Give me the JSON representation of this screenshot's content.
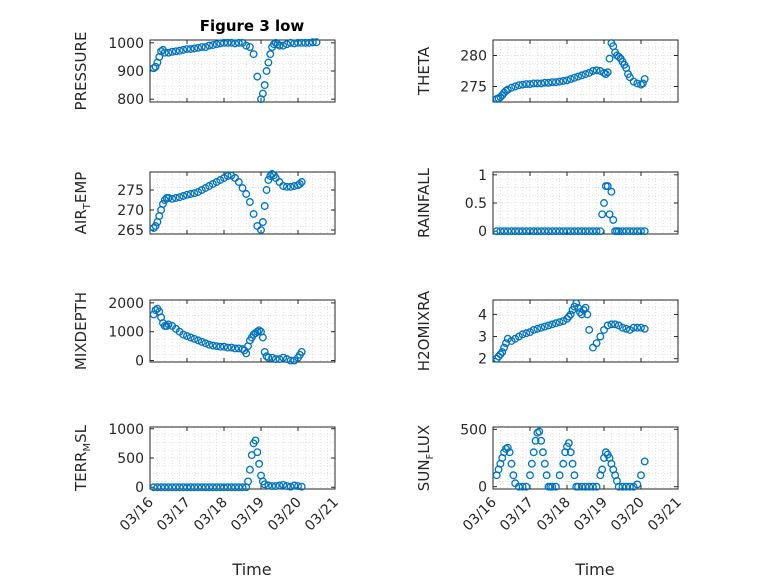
{
  "figure": {
    "title": "Figure 3 low",
    "marker_color": "#0072BD",
    "x_tick_labels": [
      "03/16",
      "03/17",
      "03/18",
      "03/19",
      "03/20",
      "03/21"
    ],
    "xlabel": "Time"
  },
  "chart_data": [
    {
      "type": "scatter",
      "ylabel": "PRESSURE",
      "xlim": [
        0,
        5
      ],
      "ylim": [
        790,
        1010
      ],
      "yticks": [
        800,
        900,
        1000
      ],
      "ytick_labels": [
        "800",
        "900",
        "1000"
      ],
      "grid": true,
      "x": [
        0.1,
        0.15,
        0.2,
        0.25,
        0.3,
        0.35,
        0.4,
        0.5,
        0.6,
        0.7,
        0.8,
        0.9,
        1.0,
        1.1,
        1.2,
        1.3,
        1.4,
        1.5,
        1.6,
        1.7,
        1.8,
        1.9,
        2.0,
        2.1,
        2.2,
        2.3,
        2.4,
        2.5,
        2.6,
        2.7,
        2.8,
        2.9,
        3.0,
        3.05,
        3.1,
        3.15,
        3.2,
        3.25,
        3.3,
        3.35,
        3.4,
        3.45,
        3.5,
        3.6,
        3.7,
        3.8,
        3.9,
        4.0,
        4.1,
        4.2,
        4.3,
        4.4,
        4.5
      ],
      "y": [
        910,
        915,
        930,
        950,
        970,
        975,
        965,
        965,
        968,
        970,
        972,
        975,
        978,
        978,
        980,
        982,
        985,
        985,
        990,
        992,
        995,
        998,
        1000,
        1000,
        1000,
        998,
        1000,
        1000,
        990,
        985,
        960,
        880,
        800,
        820,
        850,
        900,
        930,
        960,
        985,
        995,
        1000,
        995,
        990,
        990,
        995,
        1000,
        998,
        1000,
        1000,
        1000,
        1000,
        1002,
        1002
      ]
    },
    {
      "type": "scatter",
      "ylabel": "THETA",
      "xlim": [
        0,
        5
      ],
      "ylim": [
        272.5,
        282.5
      ],
      "yticks": [
        275,
        280
      ],
      "ytick_labels": [
        "275",
        "280"
      ],
      "grid": true,
      "x": [
        0.1,
        0.15,
        0.2,
        0.25,
        0.3,
        0.35,
        0.4,
        0.5,
        0.6,
        0.7,
        0.8,
        0.9,
        1.0,
        1.1,
        1.2,
        1.3,
        1.4,
        1.5,
        1.6,
        1.7,
        1.8,
        1.9,
        2.0,
        2.1,
        2.2,
        2.3,
        2.4,
        2.5,
        2.6,
        2.7,
        2.8,
        2.9,
        3.0,
        3.05,
        3.1,
        3.15,
        3.2,
        3.25,
        3.3,
        3.35,
        3.4,
        3.45,
        3.5,
        3.55,
        3.6,
        3.65,
        3.7,
        3.8,
        3.9,
        4.0,
        4.05,
        4.1
      ],
      "y": [
        273.0,
        273.1,
        273.3,
        273.6,
        274.0,
        274.3,
        274.5,
        274.8,
        275.0,
        275.2,
        275.3,
        275.4,
        275.4,
        275.5,
        275.5,
        275.5,
        275.6,
        275.6,
        275.7,
        275.7,
        275.8,
        275.9,
        276.0,
        276.2,
        276.4,
        276.6,
        276.8,
        277.0,
        277.2,
        277.5,
        277.6,
        277.5,
        277.2,
        277.0,
        277.3,
        279.5,
        282.0,
        281.5,
        280.5,
        280.0,
        279.8,
        279.5,
        279.0,
        278.5,
        278.0,
        277.0,
        276.5,
        275.8,
        275.5,
        275.3,
        275.5,
        276.2
      ]
    },
    {
      "type": "scatter",
      "ylabel": "AIR_TEMP",
      "xlim": [
        0,
        5
      ],
      "ylim": [
        264,
        279.5
      ],
      "yticks": [
        265,
        270,
        275
      ],
      "ytick_labels": [
        "265",
        "270",
        "275"
      ],
      "grid": true,
      "x": [
        0.1,
        0.15,
        0.2,
        0.25,
        0.3,
        0.35,
        0.4,
        0.45,
        0.5,
        0.6,
        0.7,
        0.8,
        0.9,
        1.0,
        1.1,
        1.2,
        1.3,
        1.4,
        1.5,
        1.6,
        1.7,
        1.8,
        1.9,
        2.0,
        2.1,
        2.2,
        2.3,
        2.4,
        2.5,
        2.6,
        2.7,
        2.8,
        2.9,
        3.0,
        3.05,
        3.1,
        3.15,
        3.2,
        3.25,
        3.3,
        3.35,
        3.4,
        3.5,
        3.6,
        3.7,
        3.8,
        3.9,
        4.0,
        4.05,
        4.1
      ],
      "y": [
        265.5,
        266.0,
        267.0,
        268.5,
        270.0,
        271.5,
        272.5,
        273.0,
        273.0,
        272.8,
        273.0,
        273.2,
        273.5,
        273.8,
        274.0,
        274.2,
        274.5,
        275.0,
        275.5,
        276.0,
        276.5,
        277.0,
        277.5,
        278.0,
        278.5,
        278.6,
        278.0,
        277.0,
        275.5,
        274.0,
        272.0,
        269.0,
        266.0,
        265.0,
        267.0,
        271.0,
        275.0,
        277.5,
        278.5,
        279.0,
        278.7,
        278.0,
        277.0,
        276.0,
        275.8,
        275.8,
        276.0,
        276.2,
        276.5,
        277.0
      ]
    },
    {
      "type": "scatter",
      "ylabel": "RAINFALL",
      "xlim": [
        0,
        5
      ],
      "ylim": [
        -0.05,
        1.05
      ],
      "yticks": [
        0,
        0.5,
        1
      ],
      "ytick_labels": [
        "0",
        "0.5",
        "1"
      ],
      "grid": true,
      "x": [
        0.1,
        0.2,
        0.3,
        0.4,
        0.5,
        0.6,
        0.7,
        0.8,
        0.9,
        1.0,
        1.1,
        1.2,
        1.3,
        1.4,
        1.5,
        1.6,
        1.7,
        1.8,
        1.9,
        2.0,
        2.1,
        2.2,
        2.3,
        2.4,
        2.5,
        2.6,
        2.7,
        2.8,
        2.9,
        2.95,
        3.0,
        3.05,
        3.1,
        3.15,
        3.2,
        3.25,
        3.3,
        3.35,
        3.4,
        3.5,
        3.6,
        3.7,
        3.8,
        3.9,
        4.0,
        4.1
      ],
      "y": [
        0,
        0,
        0,
        0,
        0,
        0,
        0,
        0,
        0,
        0,
        0,
        0,
        0,
        0,
        0,
        0,
        0,
        0,
        0,
        0,
        0,
        0,
        0,
        0,
        0,
        0,
        0,
        0,
        0,
        0.3,
        0.5,
        0.8,
        0.8,
        0.3,
        0.7,
        0.2,
        0,
        0,
        0,
        0,
        0,
        0,
        0,
        0,
        0,
        0
      ]
    },
    {
      "type": "scatter",
      "ylabel": "MIXDEPTH",
      "xlim": [
        0,
        5
      ],
      "ylim": [
        -50,
        2100
      ],
      "yticks": [
        0,
        1000,
        2000
      ],
      "ytick_labels": [
        "0",
        "1000",
        "2000"
      ],
      "grid": true,
      "x": [
        0.1,
        0.15,
        0.2,
        0.25,
        0.3,
        0.35,
        0.4,
        0.45,
        0.5,
        0.6,
        0.7,
        0.8,
        0.9,
        1.0,
        1.1,
        1.2,
        1.3,
        1.4,
        1.5,
        1.6,
        1.7,
        1.8,
        1.9,
        2.0,
        2.1,
        2.2,
        2.3,
        2.4,
        2.5,
        2.55,
        2.6,
        2.65,
        2.7,
        2.75,
        2.8,
        2.85,
        2.9,
        2.95,
        3.0,
        3.05,
        3.1,
        3.15,
        3.2,
        3.3,
        3.4,
        3.5,
        3.6,
        3.7,
        3.8,
        3.9,
        4.0,
        4.05,
        4.1
      ],
      "y": [
        1600,
        1750,
        1800,
        1700,
        1500,
        1300,
        1200,
        1200,
        1250,
        1200,
        1100,
        1000,
        900,
        850,
        800,
        750,
        700,
        650,
        600,
        550,
        520,
        500,
        480,
        480,
        450,
        450,
        420,
        420,
        400,
        350,
        250,
        500,
        700,
        800,
        900,
        950,
        1000,
        1050,
        1000,
        800,
        300,
        150,
        100,
        100,
        50,
        50,
        100,
        50,
        0,
        0,
        100,
        200,
        300
      ]
    },
    {
      "type": "scatter",
      "ylabel": "H2OMIXRA",
      "xlim": [
        0,
        5
      ],
      "ylim": [
        1.85,
        4.65
      ],
      "yticks": [
        2,
        3,
        4
      ],
      "ytick_labels": [
        "2",
        "3",
        "4"
      ],
      "grid": true,
      "x": [
        0.1,
        0.15,
        0.2,
        0.25,
        0.3,
        0.35,
        0.4,
        0.5,
        0.6,
        0.7,
        0.8,
        0.9,
        1.0,
        1.1,
        1.2,
        1.3,
        1.4,
        1.5,
        1.6,
        1.7,
        1.8,
        1.9,
        2.0,
        2.05,
        2.1,
        2.15,
        2.2,
        2.25,
        2.3,
        2.35,
        2.4,
        2.45,
        2.5,
        2.55,
        2.6,
        2.7,
        2.8,
        2.9,
        3.0,
        3.1,
        3.2,
        3.3,
        3.4,
        3.5,
        3.6,
        3.7,
        3.8,
        3.9,
        4.0,
        4.1
      ],
      "y": [
        2.0,
        2.1,
        2.2,
        2.3,
        2.5,
        2.7,
        2.9,
        2.8,
        2.9,
        3.0,
        3.1,
        3.15,
        3.2,
        3.3,
        3.35,
        3.4,
        3.45,
        3.5,
        3.55,
        3.6,
        3.65,
        3.7,
        3.8,
        3.9,
        4.0,
        4.2,
        4.35,
        4.5,
        4.3,
        4.1,
        4.0,
        4.2,
        4.3,
        4.0,
        3.3,
        2.5,
        2.7,
        3.0,
        3.3,
        3.5,
        3.55,
        3.55,
        3.5,
        3.4,
        3.35,
        3.3,
        3.4,
        3.4,
        3.4,
        3.35
      ]
    },
    {
      "type": "scatter",
      "ylabel": "TERR_MSL",
      "xlim": [
        0,
        5
      ],
      "ylim": [
        -30,
        1030
      ],
      "yticks": [
        0,
        500,
        1000
      ],
      "ytick_labels": [
        "0",
        "500",
        "1000"
      ],
      "grid": true,
      "x": [
        0.1,
        0.2,
        0.3,
        0.4,
        0.5,
        0.6,
        0.7,
        0.8,
        0.9,
        1.0,
        1.1,
        1.2,
        1.3,
        1.4,
        1.5,
        1.6,
        1.7,
        1.8,
        1.9,
        2.0,
        2.1,
        2.2,
        2.3,
        2.4,
        2.5,
        2.6,
        2.65,
        2.7,
        2.75,
        2.8,
        2.85,
        2.9,
        2.95,
        3.0,
        3.05,
        3.1,
        3.2,
        3.3,
        3.4,
        3.5,
        3.6,
        3.7,
        3.8,
        3.9,
        4.0,
        4.1
      ],
      "y": [
        0,
        0,
        0,
        0,
        0,
        0,
        0,
        0,
        0,
        0,
        0,
        0,
        0,
        0,
        0,
        0,
        0,
        0,
        0,
        0,
        0,
        0,
        0,
        0,
        0,
        0,
        100,
        300,
        550,
        750,
        800,
        600,
        400,
        200,
        100,
        50,
        30,
        20,
        20,
        30,
        40,
        20,
        10,
        30,
        20,
        10
      ]
    },
    {
      "type": "scatter",
      "ylabel": "SUN_FLUX",
      "xlim": [
        0,
        5
      ],
      "ylim": [
        -20,
        520
      ],
      "yticks": [
        0,
        500
      ],
      "ytick_labels": [
        "0",
        "500"
      ],
      "grid": true,
      "x": [
        0.1,
        0.15,
        0.2,
        0.25,
        0.3,
        0.35,
        0.4,
        0.45,
        0.5,
        0.55,
        0.6,
        0.7,
        0.8,
        0.9,
        1.0,
        1.05,
        1.1,
        1.15,
        1.2,
        1.25,
        1.3,
        1.35,
        1.4,
        1.45,
        1.5,
        1.55,
        1.6,
        1.7,
        1.8,
        1.9,
        1.95,
        2.0,
        2.05,
        2.1,
        2.15,
        2.2,
        2.25,
        2.3,
        2.4,
        2.5,
        2.6,
        2.7,
        2.8,
        2.9,
        2.95,
        3.0,
        3.05,
        3.1,
        3.15,
        3.2,
        3.25,
        3.3,
        3.35,
        3.4,
        3.5,
        3.6,
        3.7,
        3.8,
        3.9,
        4.0,
        4.1
      ],
      "y": [
        100,
        150,
        200,
        250,
        300,
        330,
        340,
        300,
        200,
        100,
        30,
        0,
        0,
        0,
        100,
        200,
        300,
        400,
        470,
        480,
        400,
        300,
        200,
        100,
        0,
        0,
        0,
        0,
        100,
        200,
        300,
        350,
        380,
        300,
        200,
        100,
        0,
        0,
        0,
        0,
        0,
        0,
        0,
        100,
        150,
        250,
        300,
        280,
        250,
        200,
        150,
        100,
        50,
        0,
        0,
        0,
        0,
        0,
        20,
        100,
        220
      ]
    }
  ]
}
